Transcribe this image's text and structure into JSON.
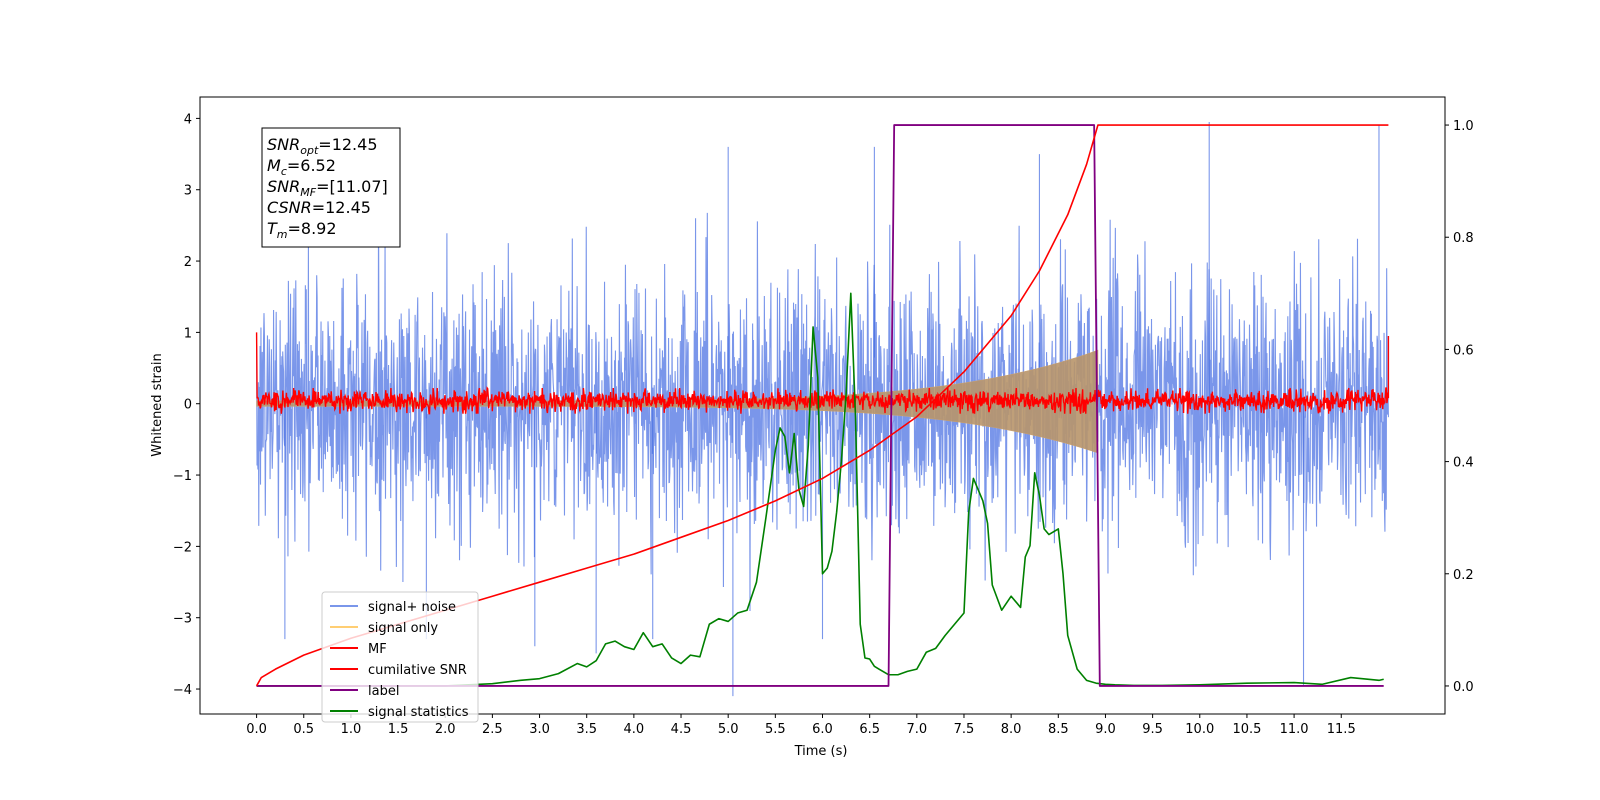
{
  "chart_data": {
    "type": "line",
    "xlabel": "Time (s)",
    "ylabel": "Whitened strain",
    "xlim": [
      -0.6,
      12.6
    ],
    "ylim_left": [
      -4.35,
      4.3
    ],
    "ylim_right": [
      -0.05,
      1.05
    ],
    "x_ticks": [
      0.0,
      0.5,
      1.0,
      1.5,
      2.0,
      2.5,
      3.0,
      3.5,
      4.0,
      4.5,
      5.0,
      5.5,
      6.0,
      6.5,
      7.0,
      7.5,
      8.0,
      8.5,
      9.0,
      9.5,
      10.0,
      10.5,
      11.0,
      11.5
    ],
    "x_tick_labels": [
      "0.0",
      "0.5",
      "1.0",
      "1.5",
      "2.0",
      "2.5",
      "3.0",
      "3.5",
      "4.0",
      "4.5",
      "5.0",
      "5.5",
      "6.0",
      "6.5",
      "7.0",
      "7.5",
      "8.0",
      "8.5",
      "9.0",
      "9.5",
      "10.0",
      "10.5",
      "11.0",
      "11.5"
    ],
    "y_ticks_left": [
      4,
      3,
      2,
      1,
      0,
      -1,
      -2,
      -3,
      -4
    ],
    "y_tick_labels_left": [
      "4",
      "3",
      "2",
      "1",
      "0",
      "−1",
      "−2",
      "−3",
      "−4"
    ],
    "y_ticks_right": [
      1.0,
      0.8,
      0.6,
      0.4,
      0.2,
      0.0
    ],
    "y_tick_labels_right": [
      "1.0",
      "0.8",
      "0.6",
      "0.4",
      "0.2",
      "0.0"
    ],
    "colors": {
      "signal_noise": "#4169e1",
      "signal_only": "#ffa500",
      "mf": "#ff0000",
      "cumulative_snr": "#ff0000",
      "label": "#800080",
      "signal_statistics": "#008000"
    },
    "legend": {
      "location": "lower-left",
      "entries": [
        "signal+ noise",
        "signal only",
        "MF",
        "cumilative SNR",
        "label",
        "signal statistics"
      ]
    },
    "info_box": {
      "location": "upper-left",
      "lines": [
        {
          "name": "SNR",
          "sub": "opt",
          "value": "=12.45"
        },
        {
          "name": "M",
          "sub": "c",
          "value": "=6.52"
        },
        {
          "name": "SNR",
          "sub": "MF",
          "value": "=[11.07]"
        },
        {
          "name": "CSNR",
          "sub": "",
          "value": "=12.45"
        },
        {
          "name": "T",
          "sub": "m",
          "value": "=8.92"
        }
      ]
    },
    "series": [
      {
        "name": "signal+ noise",
        "axis": "left",
        "kind": "noise",
        "x_range": [
          0.0,
          12.0
        ],
        "envelope_high": 2.3,
        "envelope_low": -2.4,
        "max_peak": 3.9,
        "min_peak": -4.15
      },
      {
        "name": "signal only",
        "axis": "left",
        "kind": "chirp",
        "x_range": [
          0.0,
          8.92
        ],
        "amplitude_start": 0.04,
        "amplitude_end": 0.75
      },
      {
        "name": "MF",
        "axis": "left",
        "kind": "noise",
        "x_range": [
          0.0,
          12.0
        ],
        "envelope": 0.22,
        "edge_value_start": 1.0,
        "edge_value_end": 0.95
      },
      {
        "name": "cumilative SNR",
        "axis": "right",
        "kind": "line",
        "x": [
          0.0,
          0.05,
          0.2,
          0.5,
          1.0,
          1.5,
          2.0,
          2.5,
          3.0,
          3.5,
          4.0,
          4.5,
          5.0,
          5.5,
          6.0,
          6.5,
          7.0,
          7.5,
          8.0,
          8.3,
          8.6,
          8.8,
          8.92,
          8.95,
          12.0
        ],
        "y": [
          0.0,
          0.015,
          0.03,
          0.055,
          0.085,
          0.11,
          0.135,
          0.16,
          0.185,
          0.21,
          0.235,
          0.265,
          0.295,
          0.33,
          0.37,
          0.42,
          0.48,
          0.56,
          0.66,
          0.74,
          0.84,
          0.93,
          1.0,
          1.0,
          1.0
        ]
      },
      {
        "name": "label",
        "axis": "right",
        "kind": "line",
        "x": [
          0.0,
          6.7,
          6.76,
          8.88,
          8.94,
          11.95
        ],
        "y": [
          0.0,
          0.0,
          1.0,
          1.0,
          0.0,
          0.0
        ]
      },
      {
        "name": "signal statistics",
        "axis": "right",
        "kind": "line",
        "x": [
          0.0,
          1.0,
          2.0,
          2.5,
          2.8,
          3.0,
          3.2,
          3.4,
          3.5,
          3.6,
          3.7,
          3.8,
          3.9,
          4.0,
          4.1,
          4.2,
          4.3,
          4.4,
          4.5,
          4.6,
          4.7,
          4.8,
          4.9,
          5.0,
          5.1,
          5.2,
          5.3,
          5.4,
          5.5,
          5.55,
          5.6,
          5.65,
          5.7,
          5.75,
          5.8,
          5.85,
          5.9,
          5.95,
          6.0,
          6.05,
          6.1,
          6.15,
          6.2,
          6.25,
          6.3,
          6.35,
          6.4,
          6.45,
          6.5,
          6.55,
          6.6,
          6.7,
          6.8,
          6.9,
          7.0,
          7.1,
          7.2,
          7.3,
          7.4,
          7.5,
          7.55,
          7.6,
          7.7,
          7.75,
          7.8,
          7.9,
          8.0,
          8.05,
          8.1,
          8.15,
          8.2,
          8.25,
          8.3,
          8.35,
          8.4,
          8.5,
          8.55,
          8.6,
          8.7,
          8.8,
          8.9,
          9.0,
          9.1,
          9.3,
          9.6,
          10.0,
          10.5,
          11.0,
          11.3,
          11.6,
          11.9,
          11.95
        ],
        "y": [
          0.0,
          0.0,
          0.0,
          0.004,
          0.01,
          0.013,
          0.022,
          0.04,
          0.034,
          0.045,
          0.075,
          0.08,
          0.07,
          0.065,
          0.095,
          0.07,
          0.075,
          0.05,
          0.04,
          0.055,
          0.052,
          0.11,
          0.12,
          0.115,
          0.13,
          0.135,
          0.185,
          0.3,
          0.42,
          0.46,
          0.445,
          0.38,
          0.45,
          0.35,
          0.32,
          0.43,
          0.64,
          0.55,
          0.2,
          0.21,
          0.24,
          0.31,
          0.4,
          0.52,
          0.7,
          0.48,
          0.11,
          0.05,
          0.048,
          0.035,
          0.03,
          0.02,
          0.02,
          0.026,
          0.03,
          0.06,
          0.067,
          0.09,
          0.11,
          0.13,
          0.31,
          0.37,
          0.33,
          0.29,
          0.18,
          0.135,
          0.16,
          0.15,
          0.14,
          0.23,
          0.25,
          0.38,
          0.34,
          0.28,
          0.27,
          0.28,
          0.2,
          0.09,
          0.03,
          0.01,
          0.005,
          0.003,
          0.002,
          0.001,
          0.001,
          0.002,
          0.005,
          0.006,
          0.003,
          0.015,
          0.01,
          0.012
        ]
      }
    ]
  }
}
